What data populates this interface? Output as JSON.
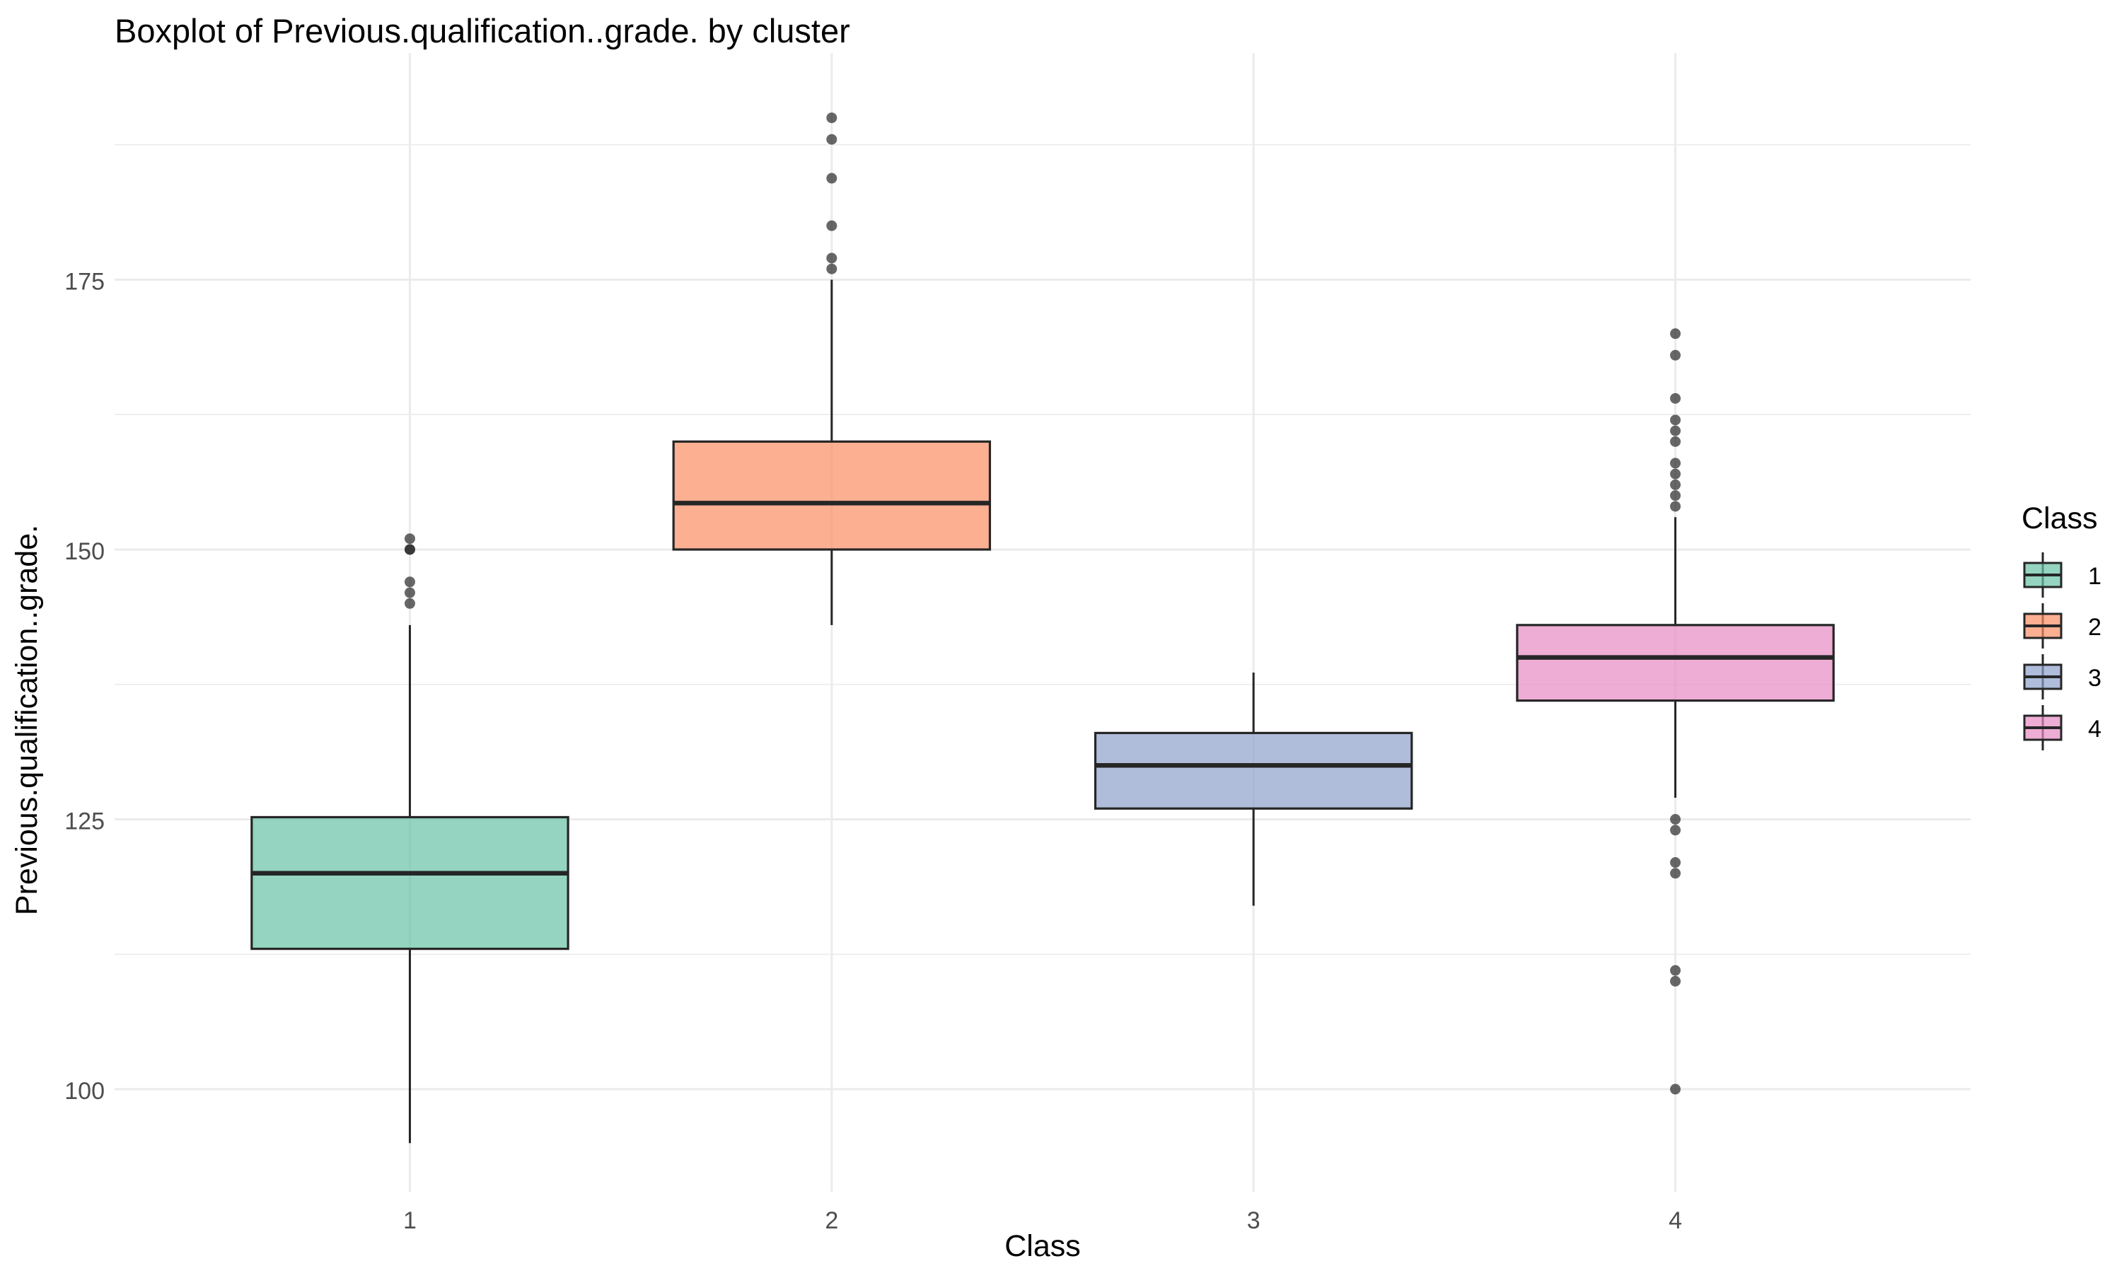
{
  "chart_data": {
    "type": "boxplot",
    "title": "Boxplot of  Previous.qualification..grade.  by cluster",
    "xlabel": "Class",
    "ylabel": "Previous.qualification..grade.",
    "categories": [
      "1",
      "2",
      "3",
      "4"
    ],
    "ylim": [
      90.5,
      196
    ],
    "yticks": [
      100,
      125,
      150,
      175
    ],
    "grid": true,
    "legend": {
      "title": "Class",
      "placement": "right",
      "entries": [
        "1",
        "2",
        "3",
        "4"
      ]
    },
    "series": [
      {
        "name": "1",
        "color": "#66C2A5",
        "q1": 113,
        "median": 120,
        "q3": 125.2,
        "whisker_low": 95,
        "whisker_high": 143,
        "outliers": [
          145,
          146,
          147,
          150,
          150,
          151
        ]
      },
      {
        "name": "2",
        "color": "#FC8D62",
        "q1": 150,
        "median": 154.3,
        "q3": 160,
        "whisker_low": 143,
        "whisker_high": 175,
        "outliers": [
          176,
          177,
          180,
          184.4,
          188,
          190
        ]
      },
      {
        "name": "3",
        "color": "#8DA0CB",
        "q1": 126,
        "median": 130,
        "q3": 133,
        "whisker_low": 117,
        "whisker_high": 138.6,
        "outliers": []
      },
      {
        "name": "4",
        "color": "#E78AC3",
        "q1": 136,
        "median": 140,
        "q3": 143,
        "whisker_low": 127,
        "whisker_high": 153,
        "outliers": [
          100,
          110,
          111,
          120,
          121,
          124,
          125,
          154,
          155,
          156,
          157,
          158,
          160,
          161,
          162,
          164,
          168,
          170
        ]
      }
    ]
  }
}
